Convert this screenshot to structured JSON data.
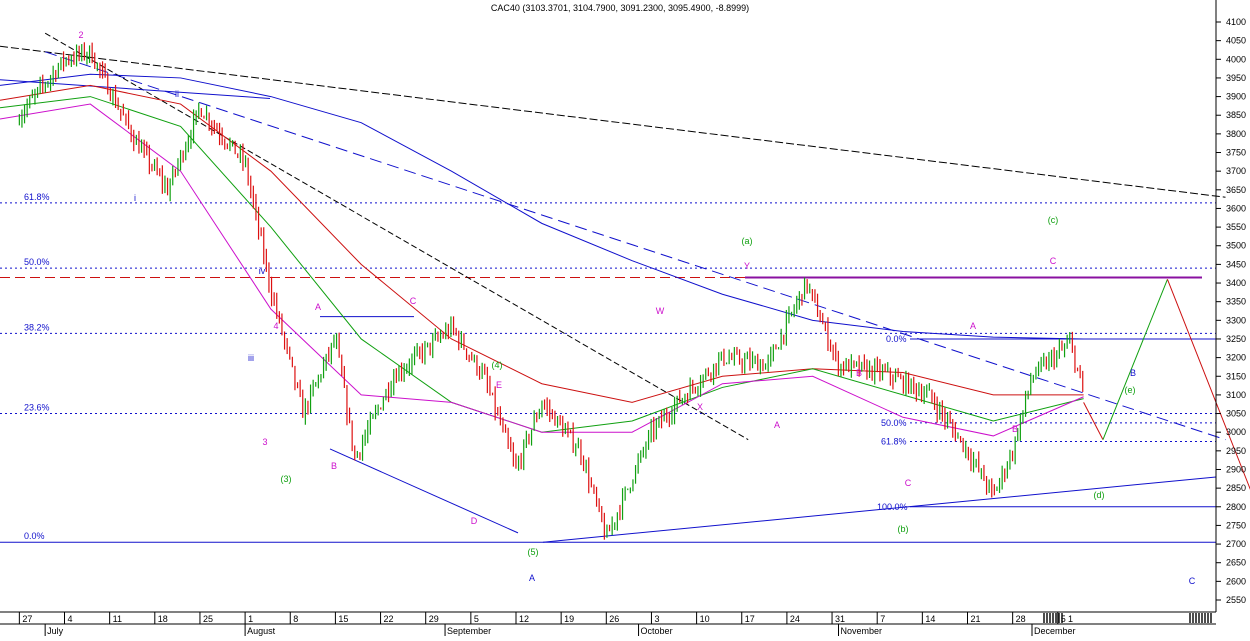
{
  "chart_data": {
    "type": "candlestick",
    "title": "CAC40 (3103.3701, 3104.7900, 3091.2300, 3095.4900, -8.8999)",
    "y_axis": {
      "min": 2500,
      "max": 4100,
      "step": 50,
      "side": "right",
      "ticks": [
        4100,
        4050,
        4000,
        3950,
        3900,
        3850,
        3800,
        3750,
        3700,
        3650,
        3600,
        3550,
        3500,
        3450,
        3400,
        3350,
        3300,
        3250,
        3200,
        3150,
        3100,
        3050,
        3000,
        2950,
        2900,
        2850,
        2800,
        2750,
        2700,
        2650,
        2600,
        2550
      ]
    },
    "x_axis": {
      "day_ticks": [
        "27",
        "4",
        "11",
        "18",
        "25",
        "1",
        "8",
        "15",
        "22",
        "29",
        "5",
        "12",
        "19",
        "26",
        "3",
        "10",
        "17",
        "24",
        "31",
        "7",
        "14",
        "21",
        "28",
        "5"
      ],
      "months": [
        "July",
        "August",
        "September",
        "October",
        "November",
        "December"
      ],
      "future_tick": "1"
    },
    "fib_levels": [
      {
        "label": "61.8%",
        "value": 3615
      },
      {
        "label": "50.0%",
        "value": 3440
      },
      {
        "label": "38.2%",
        "value": 3265
      },
      {
        "label": "23.6%",
        "value": 3050
      },
      {
        "label": "0.0%",
        "value": 2705
      }
    ],
    "fib_levels_small": [
      {
        "label": "0.0%",
        "value": 3250
      },
      {
        "label": "50.0%",
        "value": 3025
      },
      {
        "label": "61.8%",
        "value": 2975
      },
      {
        "label": "100.0%",
        "value": 2800
      }
    ],
    "resistance_line": 3415,
    "trend_lines": [
      {
        "x": [
          "2011-06-24",
          "2011-12-31"
        ],
        "y": [
          4035,
          3630
        ]
      },
      {
        "x": [
          "2011-07-01",
          "2011-12-31"
        ],
        "y": [
          4020,
          2980
        ]
      },
      {
        "x": [
          "2011-07-01",
          "2011-10-18"
        ],
        "y": [
          4070,
          2980
        ]
      }
    ],
    "price_series": [
      [
        "2011-06-27",
        3850
      ],
      [
        "2011-07-04",
        4000
      ],
      [
        "2011-07-08",
        4020
      ],
      [
        "2011-07-15",
        3780
      ],
      [
        "2011-07-20",
        3650
      ],
      [
        "2011-07-25",
        3870
      ],
      [
        "2011-08-01",
        3720
      ],
      [
        "2011-08-05",
        3380
      ],
      [
        "2011-08-10",
        3050
      ],
      [
        "2011-08-15",
        3250
      ],
      [
        "2011-08-18",
        2930
      ],
      [
        "2011-08-24",
        3150
      ],
      [
        "2011-09-02",
        3280
      ],
      [
        "2011-09-07",
        3150
      ],
      [
        "2011-09-12",
        2900
      ],
      [
        "2011-09-16",
        3080
      ],
      [
        "2011-09-22",
        2950
      ],
      [
        "2011-09-26",
        2715
      ],
      [
        "2011-10-03",
        3000
      ],
      [
        "2011-10-07",
        3080
      ],
      [
        "2011-10-14",
        3200
      ],
      [
        "2011-10-21",
        3180
      ],
      [
        "2011-10-27",
        3400
      ],
      [
        "2011-11-01",
        3180
      ],
      [
        "2011-11-08",
        3160
      ],
      [
        "2011-11-15",
        3100
      ],
      [
        "2011-11-21",
        2950
      ],
      [
        "2011-11-25",
        2830
      ],
      [
        "2011-11-28",
        2950
      ],
      [
        "2011-12-01",
        3150
      ],
      [
        "2011-12-07",
        3240
      ],
      [
        "2011-12-09",
        3095
      ]
    ],
    "moving_averages": [
      {
        "name": "MA blue",
        "color": "#1010cc",
        "values": [
          3930,
          3960,
          3950,
          3900,
          3830,
          3700,
          3560,
          3460,
          3370,
          3300,
          3270,
          3255,
          3250
        ]
      },
      {
        "name": "MA red",
        "color": "#cc1010",
        "values": [
          3890,
          3930,
          3880,
          3700,
          3450,
          3250,
          3130,
          3080,
          3150,
          3170,
          3160,
          3100,
          3100
        ]
      },
      {
        "name": "MA green",
        "color": "#10a010",
        "values": [
          3870,
          3900,
          3820,
          3550,
          3250,
          3080,
          3000,
          3030,
          3120,
          3170,
          3100,
          3030,
          3090
        ]
      },
      {
        "name": "MA magenta",
        "color": "#cc10cc",
        "values": [
          3840,
          3880,
          3700,
          3330,
          3100,
          3080,
          3000,
          3000,
          3130,
          3150,
          3040,
          2990,
          3095
        ]
      }
    ],
    "labels": [
      {
        "text": "2",
        "color": "#cc10cc"
      },
      {
        "text": "ii",
        "color": "#1010cc"
      },
      {
        "text": "i",
        "color": "#1010cc"
      },
      {
        "text": "iv",
        "color": "#1010cc"
      },
      {
        "text": "iii",
        "color": "#1010cc"
      },
      {
        "text": "4",
        "color": "#cc10cc"
      },
      {
        "text": "3",
        "color": "#cc10cc"
      },
      {
        "text": "(3)",
        "color": "#10a010"
      },
      {
        "text": "A",
        "color": "#cc10cc"
      },
      {
        "text": "B",
        "color": "#cc10cc"
      },
      {
        "text": "C",
        "color": "#cc10cc"
      },
      {
        "text": "(4)",
        "color": "#10a010"
      },
      {
        "text": "E",
        "color": "#cc10cc"
      },
      {
        "text": "D",
        "color": "#cc10cc"
      },
      {
        "text": "(5)",
        "color": "#10a010"
      },
      {
        "text": "A",
        "color": "#1010cc"
      },
      {
        "text": "W",
        "color": "#cc10cc"
      },
      {
        "text": "X",
        "color": "#cc10cc"
      },
      {
        "text": "(a)",
        "color": "#10a010"
      },
      {
        "text": "Y",
        "color": "#cc10cc"
      },
      {
        "text": "A",
        "color": "#cc10cc"
      },
      {
        "text": "B",
        "color": "#cc10cc"
      },
      {
        "text": "C",
        "color": "#cc10cc"
      },
      {
        "text": "(b)",
        "color": "#10a010"
      },
      {
        "text": "A",
        "color": "#cc10cc"
      },
      {
        "text": "B",
        "color": "#cc10cc"
      },
      {
        "text": "(c)",
        "color": "#10a010"
      },
      {
        "text": "C",
        "color": "#cc10cc"
      },
      {
        "text": "(d)",
        "color": "#10a010"
      },
      {
        "text": "(e)",
        "color": "#10a010"
      },
      {
        "text": "B",
        "color": "#1010cc"
      },
      {
        "text": "C",
        "color": "#1010cc"
      }
    ],
    "projections": [
      {
        "color": "#cc1010",
        "points": [
          [
            "2011-12-09",
            3080
          ],
          [
            "2011-12-12",
            2980
          ]
        ]
      },
      {
        "color": "#10a010",
        "points": [
          [
            "2011-12-12",
            2980
          ],
          [
            "2011-12-22",
            3410
          ]
        ]
      },
      {
        "color": "#cc1010",
        "points": [
          [
            "2011-12-22",
            3410
          ],
          [
            "2012-01-04",
            2840
          ]
        ]
      },
      {
        "color": "#10a010",
        "points": [
          [
            "2012-01-04",
            2840
          ],
          [
            "2012-01-12",
            3050
          ]
        ]
      },
      {
        "color": "#cc1010",
        "points": [
          [
            "2012-01-12",
            3050
          ],
          [
            "2012-01-27",
            2540
          ]
        ]
      }
    ],
    "grid": false,
    "legend": "none"
  }
}
